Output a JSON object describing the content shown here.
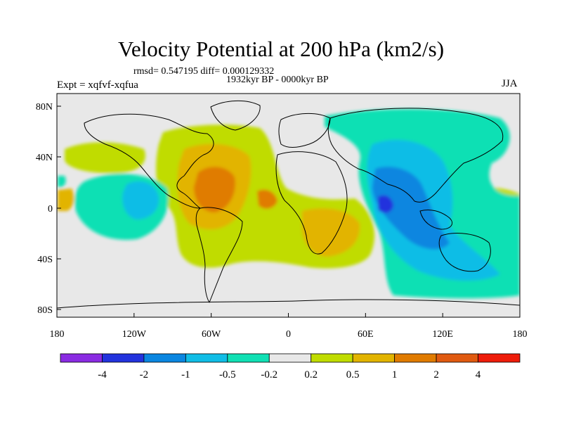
{
  "title": "Velocity Potential at 200 hPa (km2/s)",
  "stats": "rmsd= 0.547195 diff= 0.000129332",
  "period": "1932kyr BP - 0000kyr BP",
  "experiment": "Expt = xqfvf-xqfua",
  "season": "JJA",
  "axes": {
    "y_ticks": [
      "80N",
      "40N",
      "0",
      "40S",
      "80S"
    ],
    "x_ticks": [
      "180",
      "120W",
      "60W",
      "0",
      "60E",
      "120E",
      "180"
    ]
  },
  "colorbar": {
    "colors": [
      "#8a2be2",
      "#2233dd",
      "#0a86e0",
      "#10bde6",
      "#10e0b4",
      "#e8e8e8",
      "#c0dc00",
      "#e2b400",
      "#e07b00",
      "#e05a10",
      "#ee1c0a"
    ],
    "labels": [
      "-4",
      "-2",
      "-1",
      "-0.5",
      "-0.2",
      "0.2",
      "0.5",
      "1",
      "2",
      "4"
    ]
  },
  "palette": {
    "background": "#e8e8e8",
    "coast": "#000000"
  }
}
